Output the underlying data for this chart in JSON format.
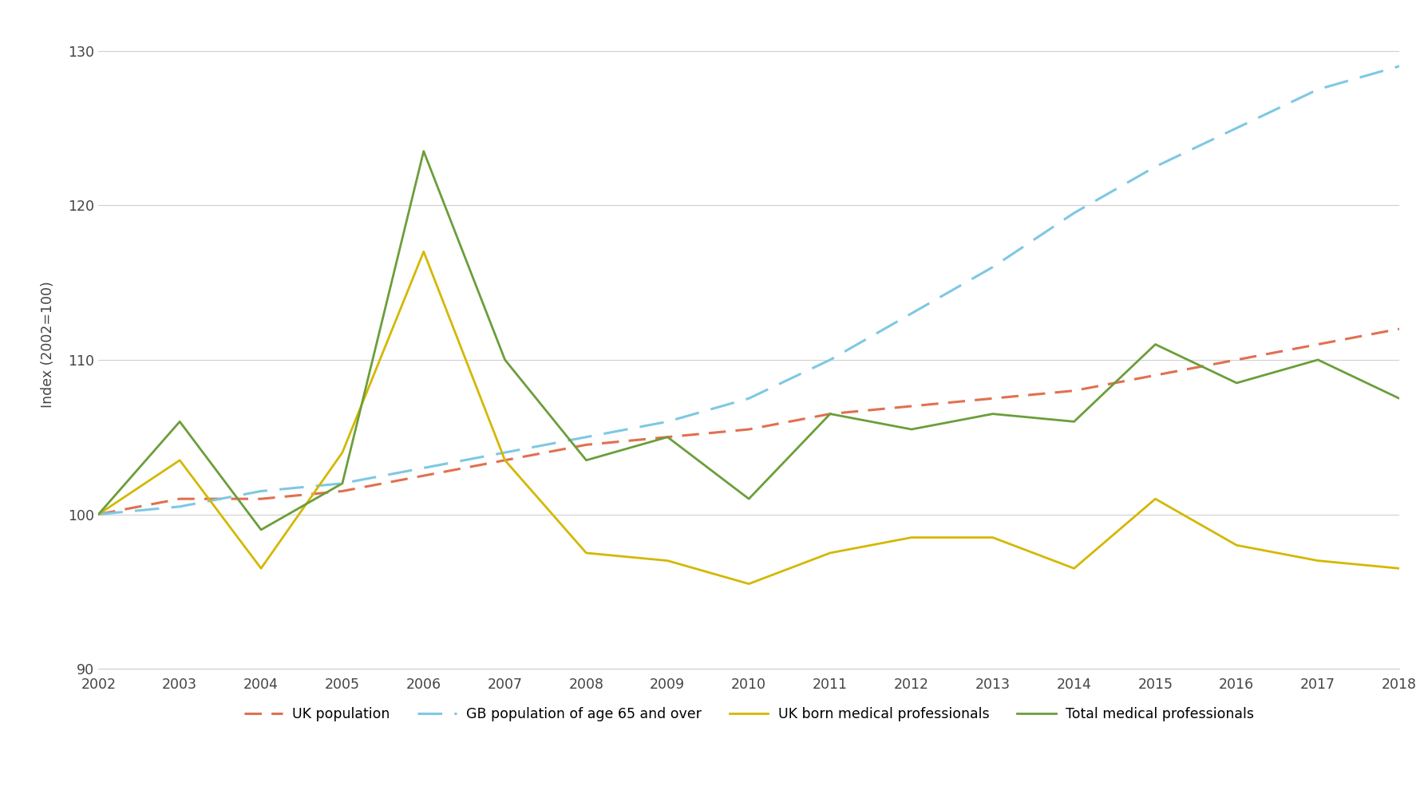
{
  "years": [
    2002,
    2003,
    2004,
    2005,
    2006,
    2007,
    2008,
    2009,
    2010,
    2011,
    2012,
    2013,
    2014,
    2015,
    2016,
    2017,
    2018
  ],
  "uk_population": [
    100,
    101,
    101,
    101.5,
    102.5,
    103.5,
    104.5,
    105,
    105.5,
    106.5,
    107,
    107.5,
    108,
    109,
    110,
    111,
    112
  ],
  "gb_65_over": [
    100,
    100.5,
    101.5,
    102,
    103,
    104,
    105,
    106,
    107.5,
    110,
    113,
    116,
    119.5,
    122.5,
    125,
    127.5,
    129
  ],
  "uk_born_medical": [
    100,
    103.5,
    96.5,
    104,
    117,
    103.5,
    97.5,
    97,
    95.5,
    97.5,
    98.5,
    98.5,
    96.5,
    101,
    98,
    97,
    96.5
  ],
  "total_medical": [
    100,
    106,
    99,
    102,
    123.5,
    110,
    103.5,
    105,
    101,
    106.5,
    105.5,
    106.5,
    106,
    111,
    108.5,
    110,
    107.5
  ],
  "uk_population_color": "#e07050",
  "gb_65_color": "#7ec8e3",
  "uk_born_color": "#d4b800",
  "total_color": "#6b9e3a",
  "ylabel": "Index (2002=100)",
  "ylim": [
    90,
    132
  ],
  "yticks": [
    90,
    100,
    110,
    120,
    130
  ],
  "bg_color": "#ffffff",
  "grid_color": "#d0d0d0",
  "legend_labels": [
    "UK population",
    "GB population of age 65 and over",
    "UK born medical professionals",
    "Total medical professionals"
  ]
}
